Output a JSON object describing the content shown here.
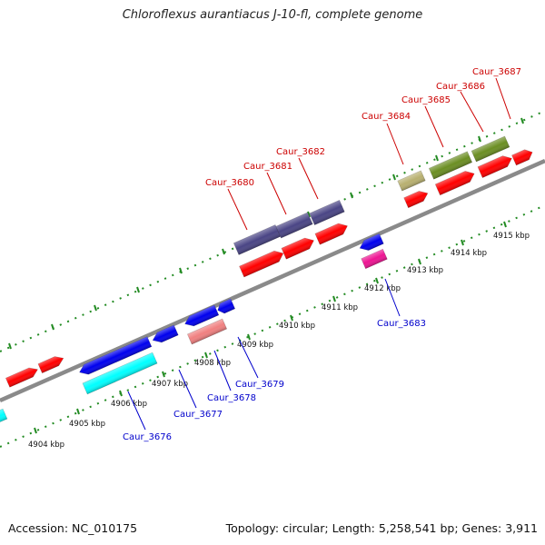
{
  "title": "Chloroflexus aurantiacus J-10-fl, complete genome",
  "footer": {
    "accession": "Accession: NC_010175",
    "summary": "Topology: circular; Length: 5,258,541 bp; Genes: 3,911"
  },
  "colors": {
    "backbone": "#8a8a8a",
    "ticks": "#228b22",
    "label_forward": "#cc0000",
    "label_reverse": "#0000cc",
    "cds_red": "#ff0000",
    "cds_blue": "#0000ee",
    "purple": "#4a4585",
    "olive": "#6b8e23",
    "khaki": "#b8b070",
    "cyan": "#00ffff",
    "magenta": "#ee1493",
    "salmon": "#f08080"
  },
  "kbp_labels": [
    "4904 kbp",
    "4905 kbp",
    "4906 kbp",
    "4907 kbp",
    "4908 kbp",
    "4909 kbp",
    "4910 kbp",
    "4911 kbp",
    "4912 kbp",
    "4913 kbp",
    "4914 kbp",
    "4915 kbp"
  ],
  "forward_labels": [
    "Caur_3680",
    "Caur_3681",
    "Caur_3682",
    "Caur_3684",
    "Caur_3685",
    "Caur_3686",
    "Caur_3687"
  ],
  "reverse_labels": [
    "Caur_3676",
    "Caur_3677",
    "Caur_3678",
    "Caur_3679",
    "Caur_3683"
  ]
}
